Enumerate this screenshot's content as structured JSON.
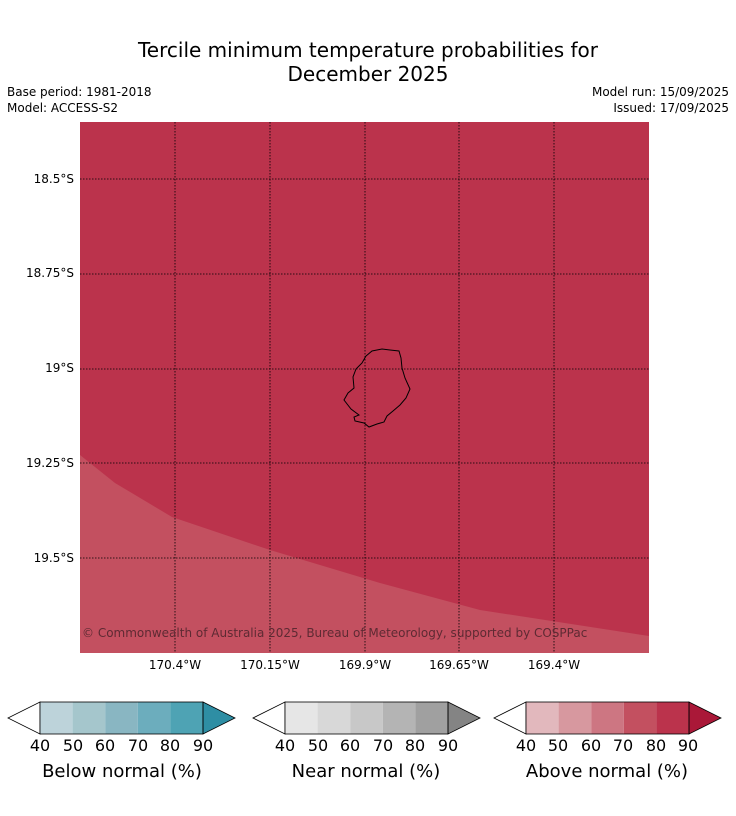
{
  "title_line1": "Tercile minimum temperature probabilities for",
  "title_line2": "December 2025",
  "meta": {
    "base_period": "Base period: 1981-2018",
    "model": "Model: ACCESS-S2",
    "model_run": "Model run: 15/09/2025",
    "issued": "Issued: 17/09/2025"
  },
  "lat_labels": [
    "18.5°S",
    "18.75°S",
    "19°S",
    "19.25°S",
    "19.5°S"
  ],
  "lon_labels": [
    "170.4°W",
    "170.15°W",
    "169.9°W",
    "169.65°W",
    "169.4°W"
  ],
  "copyright": "© Commonwealth of Australia 2025, Bureau of Meteorology, supported by COSPPac",
  "colors": {
    "above_90": "#bb334c",
    "above_80": "#c35060",
    "island_outline": "#000000"
  },
  "colorbars": [
    {
      "label": "Below normal (%)",
      "ticks": [
        "40",
        "50",
        "60",
        "70",
        "80",
        "90"
      ],
      "colors": [
        "#ffffff",
        "#bdd3da",
        "#a5c6cc",
        "#89b6c2",
        "#6cadbd",
        "#4ea3b4",
        "#2e8ea4"
      ]
    },
    {
      "label": "Near normal (%)",
      "ticks": [
        "40",
        "50",
        "60",
        "70",
        "80",
        "90"
      ],
      "colors": [
        "#ffffff",
        "#e6e6e6",
        "#d8d8d8",
        "#c8c8c8",
        "#b4b4b4",
        "#a0a0a0",
        "#848484"
      ]
    },
    {
      "label": "Above normal (%)",
      "ticks": [
        "40",
        "50",
        "60",
        "70",
        "80",
        "90"
      ],
      "colors": [
        "#ffffff",
        "#e2b8bd",
        "#d7989f",
        "#cd7682",
        "#c35060",
        "#bb334c",
        "#aa1838"
      ]
    }
  ]
}
